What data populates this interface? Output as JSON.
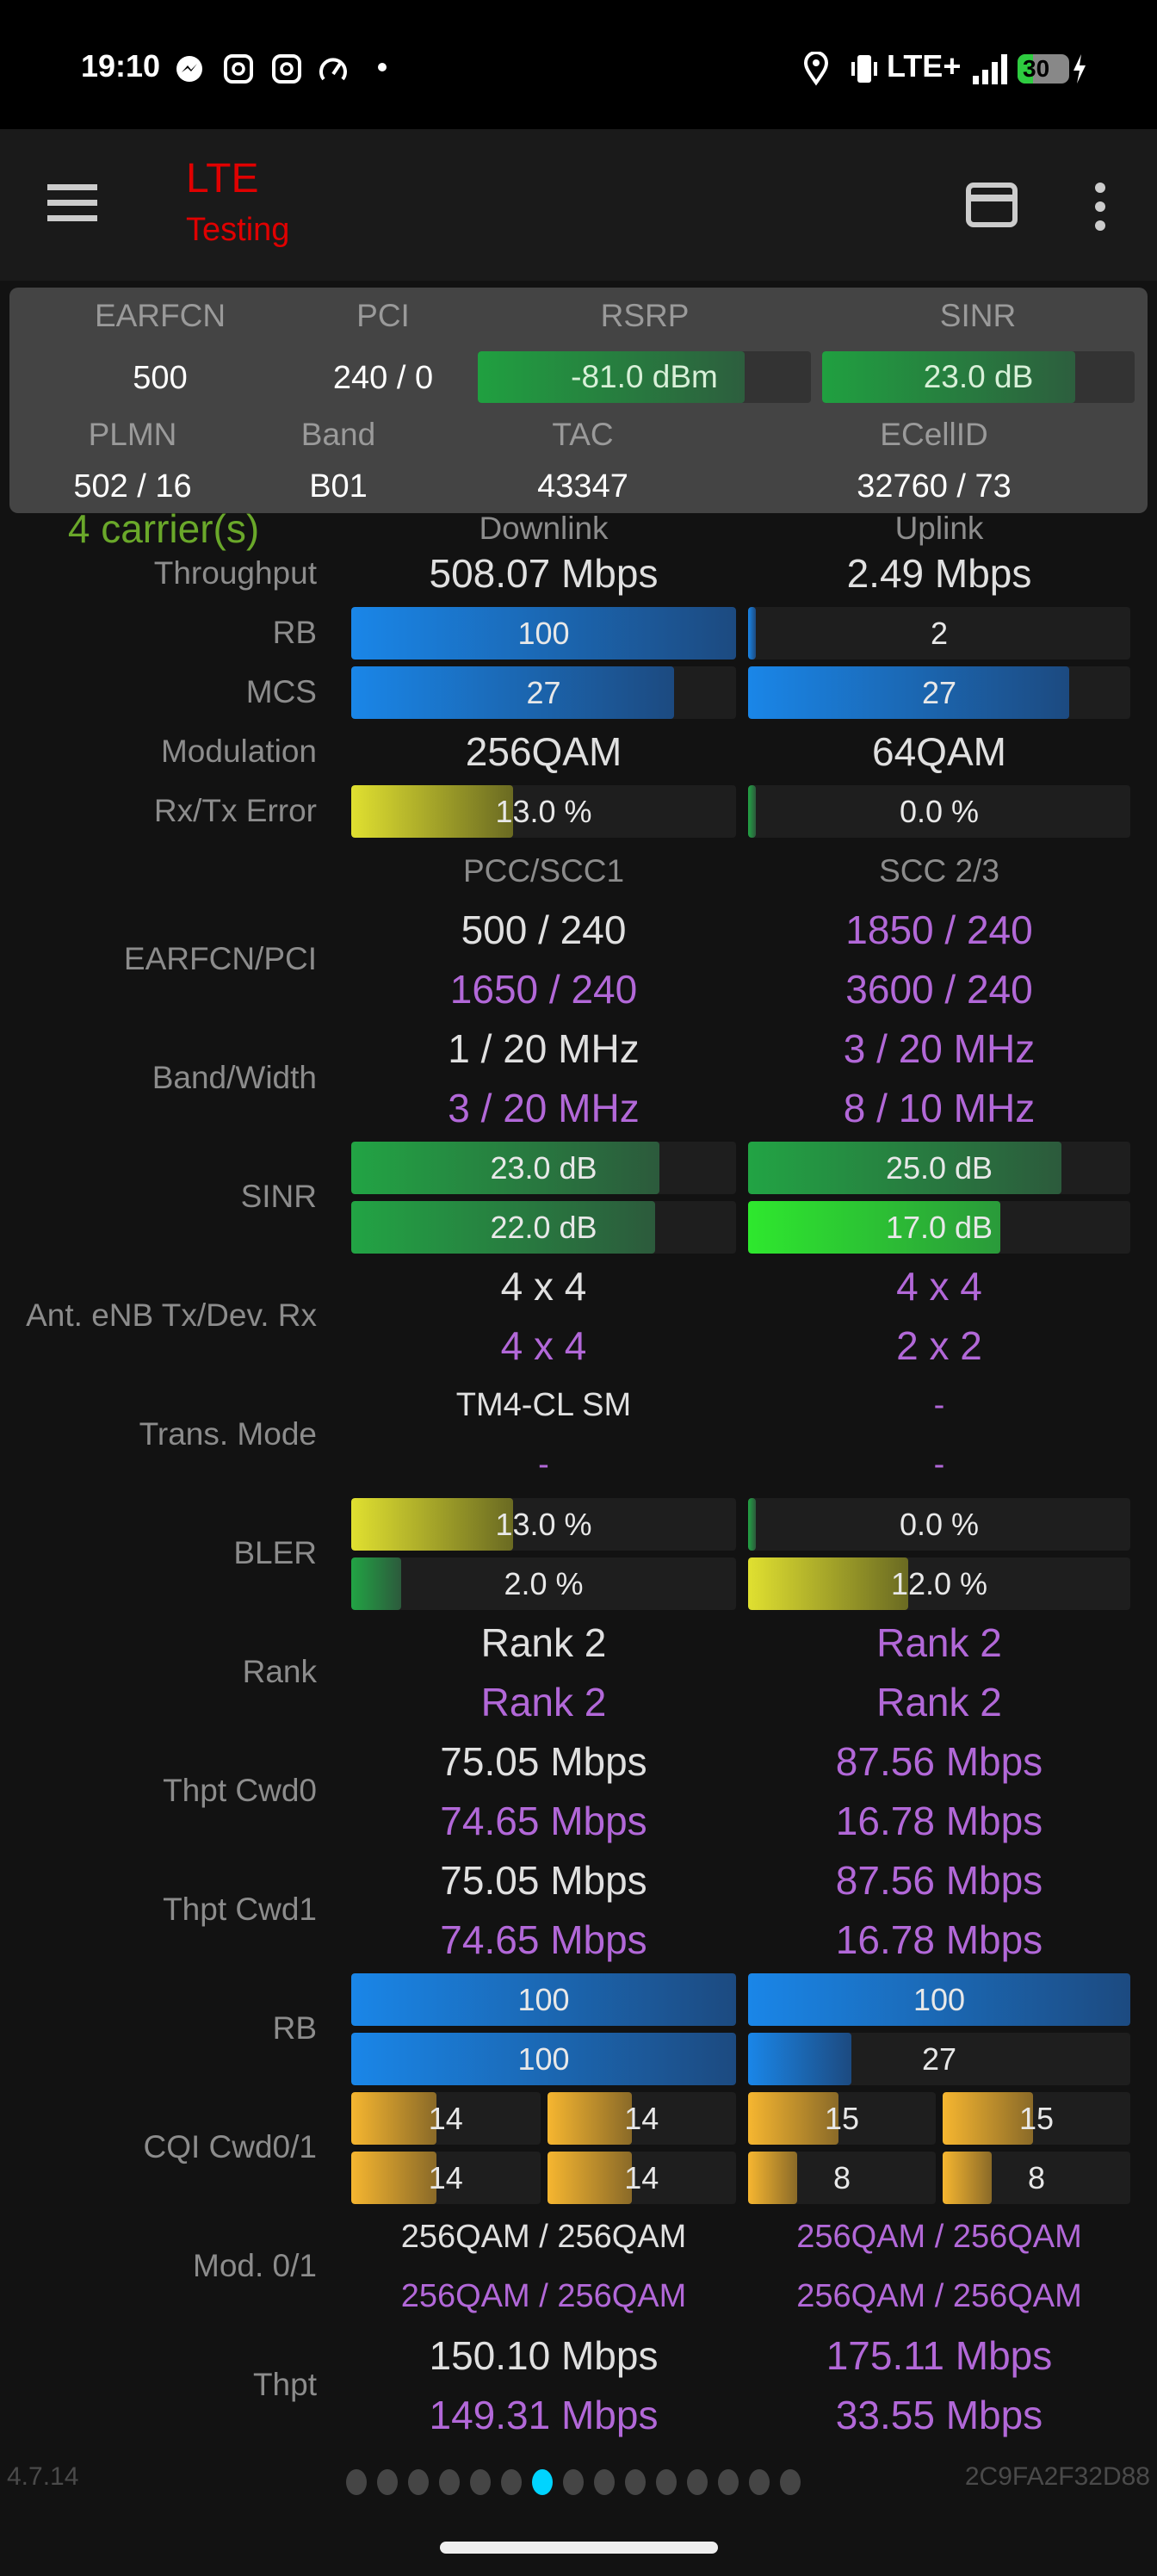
{
  "status_bar": {
    "time": "19:10",
    "network": "LTE+",
    "battery": "30",
    "icons": [
      "messenger-icon",
      "instagram-icon",
      "instagram-icon",
      "speedometer-icon",
      "dot-icon",
      "location-icon",
      "vibrate-icon",
      "signal-icon",
      "battery-charging-icon"
    ]
  },
  "app_bar": {
    "title": "LTE",
    "subtitle": "Testing",
    "icons": [
      "menu-icon",
      "card-icon",
      "more-vert-icon"
    ]
  },
  "panel": {
    "earfcn_label": "EARFCN",
    "earfcn": "500",
    "pci_label": "PCI",
    "pci": "240 / 0",
    "rsrp_label": "RSRP",
    "rsrp": "-81.0 dBm",
    "rsrp_level": 0.8,
    "sinr_label": "SINR",
    "sinr": "23.0 dB",
    "sinr_level": 0.81,
    "plmn_label": "PLMN",
    "plmn": "502 / 16",
    "band_label": "Band",
    "band": "B01",
    "tac_label": "TAC",
    "tac": "43347",
    "ecellid_label": "ECellID",
    "ecellid": "32760 / 73"
  },
  "header_row": {
    "carriers": "4 carrier(s)",
    "downlink": "Downlink",
    "uplink": "Uplink"
  },
  "rows": [
    {
      "label": "Throughput",
      "lines": [
        [
          {
            "text": "508.07 Mbps",
            "color": "white"
          },
          {
            "text": "2.49 Mbps",
            "color": "white"
          }
        ]
      ]
    },
    {
      "label": "RB",
      "lines": [
        [
          {
            "bar": "100",
            "level": 1.0,
            "style": "blue"
          },
          {
            "bar": "2",
            "level": 0.02,
            "style": "blue"
          }
        ]
      ]
    },
    {
      "label": "MCS",
      "lines": [
        [
          {
            "bar": "27",
            "level": 0.84,
            "style": "blue"
          },
          {
            "bar": "27",
            "level": 0.84,
            "style": "blue"
          }
        ]
      ]
    },
    {
      "label": "Modulation",
      "lines": [
        [
          {
            "text": "256QAM",
            "color": "white"
          },
          {
            "text": "64QAM",
            "color": "white"
          }
        ]
      ]
    },
    {
      "label": "Rx/Tx Error",
      "lines": [
        [
          {
            "bar": "13.0 %",
            "level": 0.42,
            "style": "yel"
          },
          {
            "bar": "0.0 %",
            "level": 0.02,
            "style": "grn"
          }
        ]
      ]
    },
    {
      "label": "",
      "lines": [
        [
          {
            "text": "PCC/SCC1",
            "color": "gray"
          },
          {
            "text": "SCC 2/3",
            "color": "gray"
          }
        ]
      ]
    },
    {
      "label": "EARFCN/PCI",
      "lines": [
        [
          {
            "text": "500 / 240",
            "color": "white"
          },
          {
            "text": "1850 / 240",
            "color": "purple"
          }
        ],
        [
          {
            "text": "1650 / 240",
            "color": "purple"
          },
          {
            "text": "3600 / 240",
            "color": "purple"
          }
        ]
      ]
    },
    {
      "label": "Band/Width",
      "lines": [
        [
          {
            "text": "1 / 20 MHz",
            "color": "white"
          },
          {
            "text": "3 / 20 MHz",
            "color": "purple"
          }
        ],
        [
          {
            "text": "3 / 20 MHz",
            "color": "purple"
          },
          {
            "text": "8 / 10 MHz",
            "color": "purple"
          }
        ]
      ]
    },
    {
      "label": "SINR",
      "lines": [
        [
          {
            "bar": "23.0 dB",
            "level": 0.8,
            "style": "grn"
          },
          {
            "bar": "25.0 dB",
            "level": 0.82,
            "style": "grn"
          }
        ],
        [
          {
            "bar": "22.0 dB",
            "level": 0.79,
            "style": "grn"
          },
          {
            "bar": "17.0 dB",
            "level": 0.66,
            "style": "bgrn"
          }
        ]
      ]
    },
    {
      "label": "Ant. eNB Tx/Dev. Rx",
      "lines": [
        [
          {
            "text": "4 x 4",
            "color": "white"
          },
          {
            "text": "4 x 4",
            "color": "purple"
          }
        ],
        [
          {
            "text": "4 x 4",
            "color": "purple"
          },
          {
            "text": "2 x 2",
            "color": "purple"
          }
        ]
      ]
    },
    {
      "label": "Trans. Mode",
      "small": true,
      "lines": [
        [
          {
            "text": "TM4-CL SM",
            "color": "white"
          },
          {
            "text": "-",
            "color": "purple"
          }
        ],
        [
          {
            "text": "-",
            "color": "purple"
          },
          {
            "text": "-",
            "color": "purple"
          }
        ]
      ]
    },
    {
      "label": "BLER",
      "lines": [
        [
          {
            "bar": "13.0 %",
            "level": 0.42,
            "style": "yel"
          },
          {
            "bar": "0.0 %",
            "level": 0.02,
            "style": "grn"
          }
        ],
        [
          {
            "bar": "2.0 %",
            "level": 0.13,
            "style": "grn"
          },
          {
            "bar": "12.0 %",
            "level": 0.42,
            "style": "yel"
          }
        ]
      ]
    },
    {
      "label": "Rank",
      "lines": [
        [
          {
            "text": "Rank 2",
            "color": "white"
          },
          {
            "text": "Rank 2",
            "color": "purple"
          }
        ],
        [
          {
            "text": "Rank 2",
            "color": "purple"
          },
          {
            "text": "Rank 2",
            "color": "purple"
          }
        ]
      ]
    },
    {
      "label": "Thpt Cwd0",
      "lines": [
        [
          {
            "text": "75.05 Mbps",
            "color": "white"
          },
          {
            "text": "87.56 Mbps",
            "color": "purple"
          }
        ],
        [
          {
            "text": "74.65 Mbps",
            "color": "purple"
          },
          {
            "text": "16.78 Mbps",
            "color": "purple"
          }
        ]
      ]
    },
    {
      "label": "Thpt Cwd1",
      "lines": [
        [
          {
            "text": "75.05 Mbps",
            "color": "white"
          },
          {
            "text": "87.56 Mbps",
            "color": "purple"
          }
        ],
        [
          {
            "text": "74.65 Mbps",
            "color": "purple"
          },
          {
            "text": "16.78 Mbps",
            "color": "purple"
          }
        ]
      ]
    },
    {
      "label": "RB",
      "lines": [
        [
          {
            "bar": "100",
            "level": 1.0,
            "style": "blue"
          },
          {
            "bar": "100",
            "level": 1.0,
            "style": "blue"
          }
        ],
        [
          {
            "bar": "100",
            "level": 1.0,
            "style": "blue"
          },
          {
            "bar": "27",
            "level": 0.27,
            "style": "blue"
          }
        ]
      ]
    },
    {
      "label": "CQI Cwd0/1",
      "lines": [
        [
          {
            "cqi": [
              {
                "bar": "14",
                "level": 0.45
              },
              {
                "bar": "14",
                "level": 0.45
              }
            ]
          },
          {
            "cqi": [
              {
                "bar": "15",
                "level": 0.48
              },
              {
                "bar": "15",
                "level": 0.48
              }
            ]
          }
        ],
        [
          {
            "cqi": [
              {
                "bar": "14",
                "level": 0.45
              },
              {
                "bar": "14",
                "level": 0.45
              }
            ]
          },
          {
            "cqi": [
              {
                "bar": "8",
                "level": 0.26
              },
              {
                "bar": "8",
                "level": 0.26
              }
            ]
          }
        ]
      ]
    },
    {
      "label": "Mod. 0/1",
      "small": true,
      "lines": [
        [
          {
            "text": "256QAM / 256QAM",
            "color": "white"
          },
          {
            "text": "256QAM / 256QAM",
            "color": "purple"
          }
        ],
        [
          {
            "text": "256QAM / 256QAM",
            "color": "purple"
          },
          {
            "text": "256QAM / 256QAM",
            "color": "purple"
          }
        ]
      ]
    },
    {
      "label": "Thpt",
      "lines": [
        [
          {
            "text": "150.10 Mbps",
            "color": "white"
          },
          {
            "text": "175.11 Mbps",
            "color": "purple"
          }
        ],
        [
          {
            "text": "149.31 Mbps",
            "color": "purple"
          },
          {
            "text": "33.55 Mbps",
            "color": "purple"
          }
        ]
      ]
    }
  ],
  "footer": {
    "version": "4.7.14",
    "device_id": "2C9FA2F32D88",
    "page_count": 15,
    "active_page": 7
  },
  "colors": {
    "accent_title": "#e00000",
    "purple": "#b268d8",
    "active_dot": "#00d4ff"
  }
}
